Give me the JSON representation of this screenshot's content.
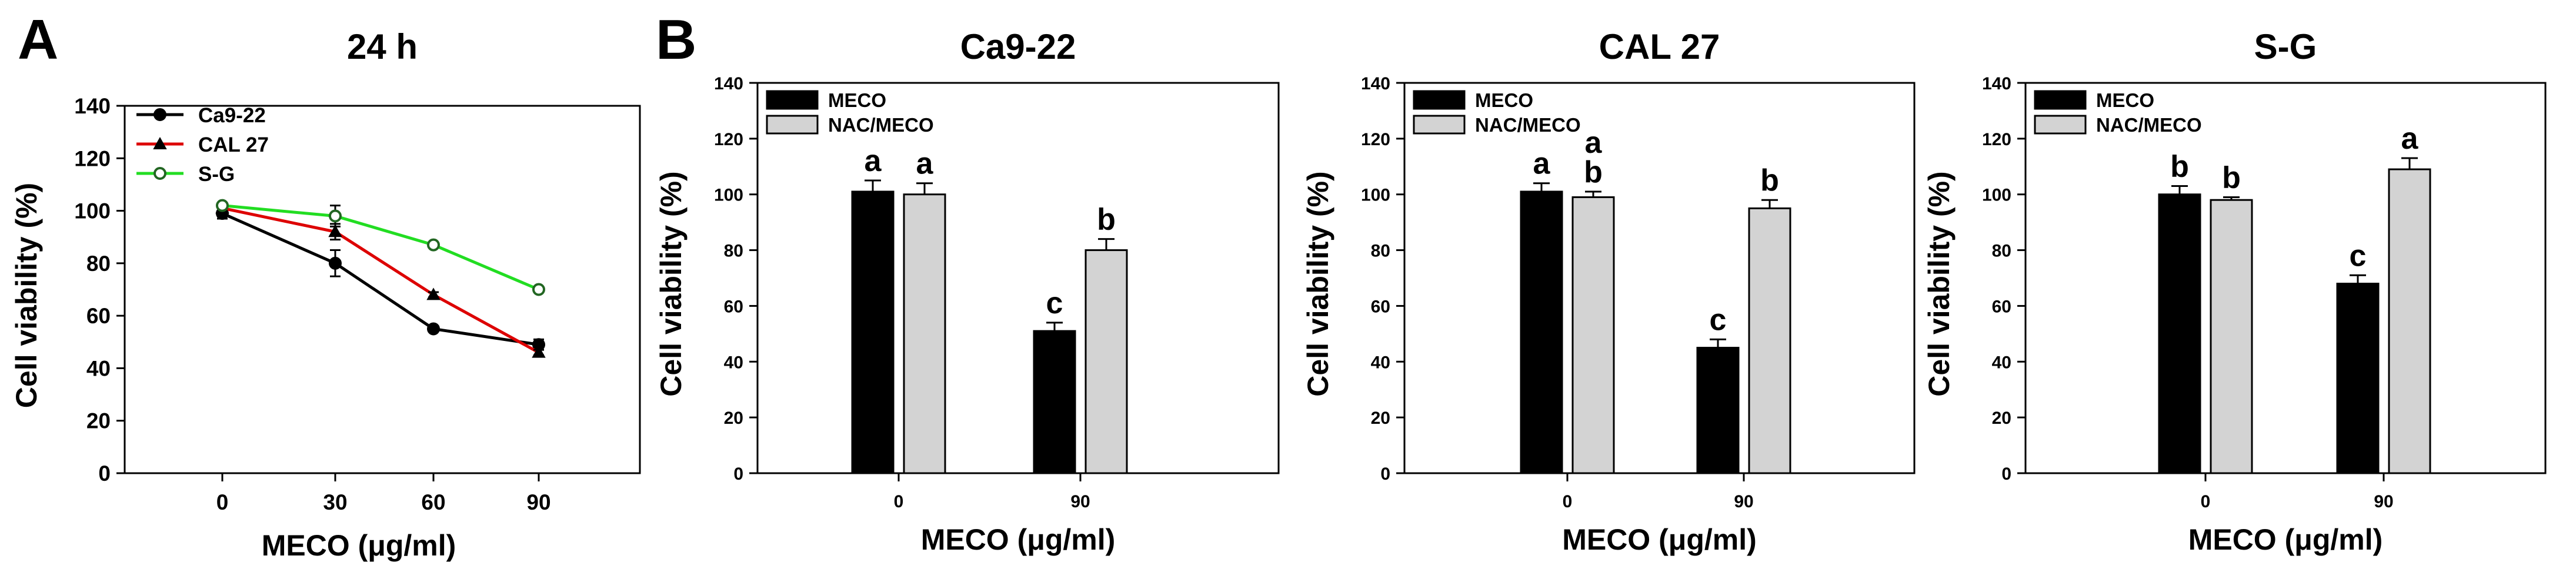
{
  "chart_data": [
    {
      "panel": "A",
      "type": "line",
      "title": "24 h",
      "xlabel": "MECO (μg/ml)",
      "ylabel": "Cell viability (%)",
      "x": [
        0,
        30,
        60,
        90
      ],
      "xticks": [
        "0",
        "30",
        "60",
        "90"
      ],
      "ylim": [
        0,
        140
      ],
      "yticks": [
        "0",
        "20",
        "40",
        "60",
        "80",
        "100",
        "120",
        "140"
      ],
      "legend_position": "top-left",
      "series": [
        {
          "name": "Ca9-22",
          "marker": "circle",
          "color": "#000000",
          "values": [
            99,
            80,
            55,
            49
          ],
          "errors": [
            2,
            5,
            1,
            2
          ]
        },
        {
          "name": "CAL 27",
          "marker": "triangle",
          "color": "#dd0000",
          "values": [
            101,
            92,
            68,
            46
          ],
          "errors": [
            1,
            3,
            1,
            1
          ]
        },
        {
          "name": "S-G",
          "marker": "circle-open",
          "color": "#22dd22",
          "values": [
            102,
            98,
            87,
            70
          ],
          "errors": [
            1,
            4,
            1,
            1
          ]
        }
      ]
    },
    {
      "panel": "B",
      "type": "bar",
      "title": "Ca9-22",
      "xlabel": "MECO (μg/ml)",
      "ylabel": "Cell viability (%)",
      "categories": [
        "0",
        "90"
      ],
      "ylim": [
        0,
        140
      ],
      "yticks": [
        "0",
        "20",
        "40",
        "60",
        "80",
        "100",
        "120",
        "140"
      ],
      "legend_position": "top-left",
      "series": [
        {
          "name": "MECO",
          "color": "#000000",
          "values": [
            101,
            51
          ],
          "errors": [
            4,
            3
          ],
          "labels": [
            "a",
            "c"
          ]
        },
        {
          "name": "NAC/MECO",
          "color": "#d3d3d3",
          "values": [
            100,
            80
          ],
          "errors": [
            4,
            4
          ],
          "labels": [
            "a",
            "b"
          ]
        }
      ]
    },
    {
      "type": "bar",
      "title": "CAL 27",
      "xlabel": "MECO (μg/ml)",
      "ylabel": "Cell viability (%)",
      "categories": [
        "0",
        "90"
      ],
      "ylim": [
        0,
        140
      ],
      "yticks": [
        "0",
        "20",
        "40",
        "60",
        "80",
        "100",
        "120",
        "140"
      ],
      "legend_position": "top-left",
      "series": [
        {
          "name": "MECO",
          "color": "#000000",
          "values": [
            101,
            45
          ],
          "errors": [
            3,
            3
          ],
          "labels": [
            "a",
            "c"
          ]
        },
        {
          "name": "NAC/MECO",
          "color": "#d3d3d3",
          "values": [
            99,
            95
          ],
          "errors": [
            2,
            3
          ],
          "labels": [
            "a\nb",
            "b"
          ]
        }
      ]
    },
    {
      "type": "bar",
      "title": "S-G",
      "xlabel": "MECO (μg/ml)",
      "ylabel": "Cell viability (%)",
      "categories": [
        "0",
        "90"
      ],
      "ylim": [
        0,
        140
      ],
      "yticks": [
        "0",
        "20",
        "40",
        "60",
        "80",
        "100",
        "120",
        "140"
      ],
      "legend_position": "top-left",
      "series": [
        {
          "name": "MECO",
          "color": "#000000",
          "values": [
            100,
            68
          ],
          "errors": [
            3,
            3
          ],
          "labels": [
            "b",
            "c"
          ]
        },
        {
          "name": "NAC/MECO",
          "color": "#d3d3d3",
          "values": [
            98,
            109
          ],
          "errors": [
            1,
            4
          ],
          "labels": [
            "b",
            "a"
          ]
        }
      ]
    }
  ]
}
